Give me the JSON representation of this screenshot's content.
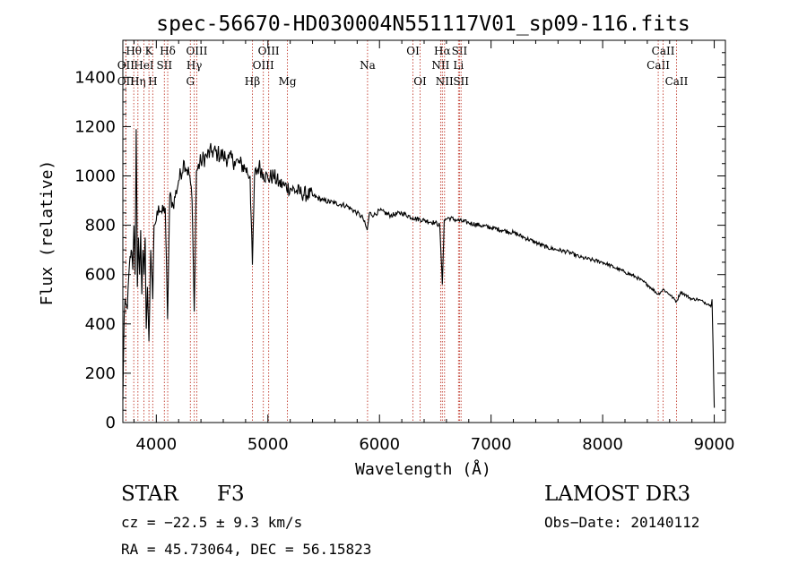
{
  "chart_data": {
    "type": "line",
    "title": "spec-56670-HD030004N551117V01_sp09-116.fits",
    "xlabel": "Wavelength (Å)",
    "ylabel": "Flux (relative)",
    "xlim": [
      3700,
      9100
    ],
    "ylim": [
      0,
      1550
    ],
    "x_ticks": [
      4000,
      5000,
      6000,
      7000,
      8000,
      9000
    ],
    "y_ticks": [
      0,
      200,
      400,
      600,
      800,
      1000,
      1200,
      1400
    ],
    "series": [
      {
        "name": "flux",
        "x": [
          3700,
          3712,
          3720,
          3740,
          3760,
          3775,
          3790,
          3800,
          3810,
          3820,
          3830,
          3840,
          3850,
          3860,
          3870,
          3880,
          3890,
          3900,
          3910,
          3920,
          3934,
          3950,
          3968,
          3980,
          4000,
          4020,
          4050,
          4080,
          4101,
          4120,
          4150,
          4200,
          4250,
          4300,
          4320,
          4340,
          4360,
          4400,
          4450,
          4500,
          4550,
          4600,
          4650,
          4700,
          4750,
          4800,
          4840,
          4861,
          4880,
          4920,
          4960,
          5000,
          5050,
          5100,
          5150,
          5200,
          5300,
          5400,
          5500,
          5600,
          5700,
          5800,
          5850,
          5890,
          5910,
          5950,
          6000,
          6100,
          6200,
          6300,
          6400,
          6500,
          6540,
          6563,
          6580,
          6620,
          6700,
          6800,
          6900,
          7000,
          7100,
          7200,
          7300,
          7400,
          7500,
          7600,
          7700,
          7800,
          7900,
          8000,
          8100,
          8200,
          8300,
          8400,
          8498,
          8542,
          8600,
          8662,
          8700,
          8800,
          8850,
          8900,
          8950,
          8970,
          8980,
          8990,
          9000
        ],
        "y": [
          90,
          430,
          500,
          460,
          650,
          700,
          620,
          800,
          600,
          1190,
          550,
          750,
          600,
          780,
          520,
          700,
          600,
          750,
          380,
          550,
          330,
          700,
          500,
          800,
          820,
          880,
          850,
          870,
          420,
          920,
          880,
          980,
          1060,
          1000,
          900,
          450,
          1020,
          1060,
          1080,
          1100,
          1090,
          1080,
          1070,
          1060,
          1050,
          1030,
          1000,
          640,
          1000,
          1040,
          1010,
          990,
          1000,
          970,
          960,
          950,
          930,
          920,
          900,
          890,
          880,
          850,
          830,
          780,
          850,
          840,
          860,
          840,
          850,
          830,
          820,
          810,
          800,
          560,
          820,
          830,
          820,
          810,
          800,
          790,
          780,
          770,
          750,
          730,
          710,
          700,
          690,
          670,
          660,
          650,
          630,
          610,
          590,
          560,
          520,
          540,
          520,
          490,
          530,
          500,
          500,
          490,
          480,
          470,
          500,
          300,
          60
        ]
      }
    ],
    "lines": [
      {
        "label": "Hθ",
        "x": 3798,
        "row": 1
      },
      {
        "label": "OII",
        "x": 3727,
        "row": 2
      },
      {
        "label": "OII",
        "x": 3727,
        "row": 3
      },
      {
        "label": "Hη",
        "x": 3835,
        "row": 3
      },
      {
        "label": "HeI",
        "x": 3889,
        "row": 2
      },
      {
        "label": "K",
        "x": 3934,
        "row": 1
      },
      {
        "label": "H",
        "x": 3968,
        "row": 3
      },
      {
        "label": "SII",
        "x": 4072,
        "row": 2
      },
      {
        "label": "Hδ",
        "x": 4102,
        "row": 1
      },
      {
        "label": "G",
        "x": 4305,
        "row": 3
      },
      {
        "label": "OIII",
        "x": 4363,
        "row": 1
      },
      {
        "label": "Hγ",
        "x": 4340,
        "row": 2
      },
      {
        "label": "Hβ",
        "x": 4861,
        "row": 3
      },
      {
        "label": "OIII",
        "x": 4959,
        "row": 2
      },
      {
        "label": "OIII",
        "x": 5007,
        "row": 1
      },
      {
        "label": "Mg",
        "x": 5175,
        "row": 3
      },
      {
        "label": "Na",
        "x": 5893,
        "row": 2
      },
      {
        "label": "OI",
        "x": 6300,
        "row": 1
      },
      {
        "label": "OI",
        "x": 6364,
        "row": 3
      },
      {
        "label": "NII",
        "x": 6548,
        "row": 2
      },
      {
        "label": "Hα",
        "x": 6563,
        "row": 1
      },
      {
        "label": "NII",
        "x": 6583,
        "row": 3
      },
      {
        "label": "SII",
        "x": 6717,
        "row": 1
      },
      {
        "label": "Li",
        "x": 6708,
        "row": 2
      },
      {
        "label": "SII",
        "x": 6731,
        "row": 3
      },
      {
        "label": "CaII",
        "x": 8498,
        "row": 2
      },
      {
        "label": "CaII",
        "x": 8542,
        "row": 1
      },
      {
        "label": "CaII",
        "x": 8662,
        "row": 3
      }
    ]
  },
  "info": {
    "object_class": "STAR",
    "subclass": "F3",
    "cz": "cz = −22.5 ± 9.3 km/s",
    "coords": "RA =  45.73064, DEC =  56.15823",
    "survey": "LAMOST DR3",
    "obs_date": "Obs−Date: 20140112"
  }
}
